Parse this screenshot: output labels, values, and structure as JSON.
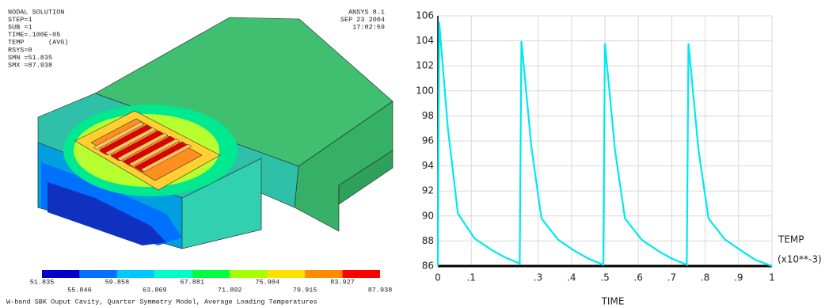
{
  "model_panel": {
    "info": [
      "NODAL SOLUTION",
      "STEP=1",
      "SUB =1",
      "TIME=.100E-05",
      "TEMP      (AVG)",
      "RSYS=0",
      "SMN =51.835",
      "SMX =87.938"
    ],
    "stamp": [
      "ANSYS 8.1",
      "SEP 23 2004",
      "17:02:59"
    ],
    "caption": "W-band SBK Ouput Cavity, Quarter Symmetry Model, Average Loading Temperatures"
  },
  "contour_legend": {
    "values": [
      51.835,
      55.846,
      59.858,
      63.869,
      67.881,
      71.892,
      75.904,
      79.915,
      83.927,
      87.938
    ],
    "colors": [
      "#0000c8",
      "#0070ff",
      "#00c8ff",
      "#00ffc8",
      "#00ff40",
      "#a8ff00",
      "#ffe000",
      "#ff8c00",
      "#ff0000"
    ]
  },
  "chart_data": {
    "type": "line",
    "x_label": "TIME",
    "x_unit": "(x10**-3)",
    "x": [
      0,
      0.004,
      0.03,
      0.06,
      0.11,
      0.16,
      0.2,
      0.245,
      0.25,
      0.28,
      0.31,
      0.36,
      0.41,
      0.45,
      0.495,
      0.5,
      0.53,
      0.56,
      0.61,
      0.66,
      0.7,
      0.745,
      0.75,
      0.78,
      0.81,
      0.86,
      0.91,
      0.95,
      1.0
    ],
    "series": [
      {
        "name": "TEMP",
        "color": "#00e8f0",
        "values": [
          86,
          105.5,
          97,
          90.2,
          88.2,
          87.3,
          86.7,
          86.2,
          104,
          95.5,
          89.8,
          88.1,
          87.2,
          86.6,
          86.1,
          103.8,
          95.3,
          89.8,
          88.1,
          87.2,
          86.6,
          86.1,
          103.8,
          95.3,
          89.8,
          88.1,
          87.2,
          86.5,
          86.0
        ]
      }
    ],
    "xlim": [
      0,
      1
    ],
    "ylim": [
      86,
      106
    ],
    "xticks": [
      0,
      {
        "value": 0.1,
        "label": ".1"
      },
      {
        "value": 0.3,
        "label": ".3"
      },
      {
        "value": 0.4,
        "label": ".4"
      },
      {
        "value": 0.5,
        "label": ".5"
      },
      {
        "value": 0.6,
        "label": ".6"
      },
      {
        "value": 0.7,
        "label": ".7"
      },
      {
        "value": 0.8,
        "label": ".8"
      },
      {
        "value": 0.9,
        "label": ".9"
      },
      1
    ],
    "yticks": [
      86,
      88,
      90,
      92,
      94,
      96,
      98,
      100,
      102,
      104,
      106
    ],
    "grid": true
  }
}
